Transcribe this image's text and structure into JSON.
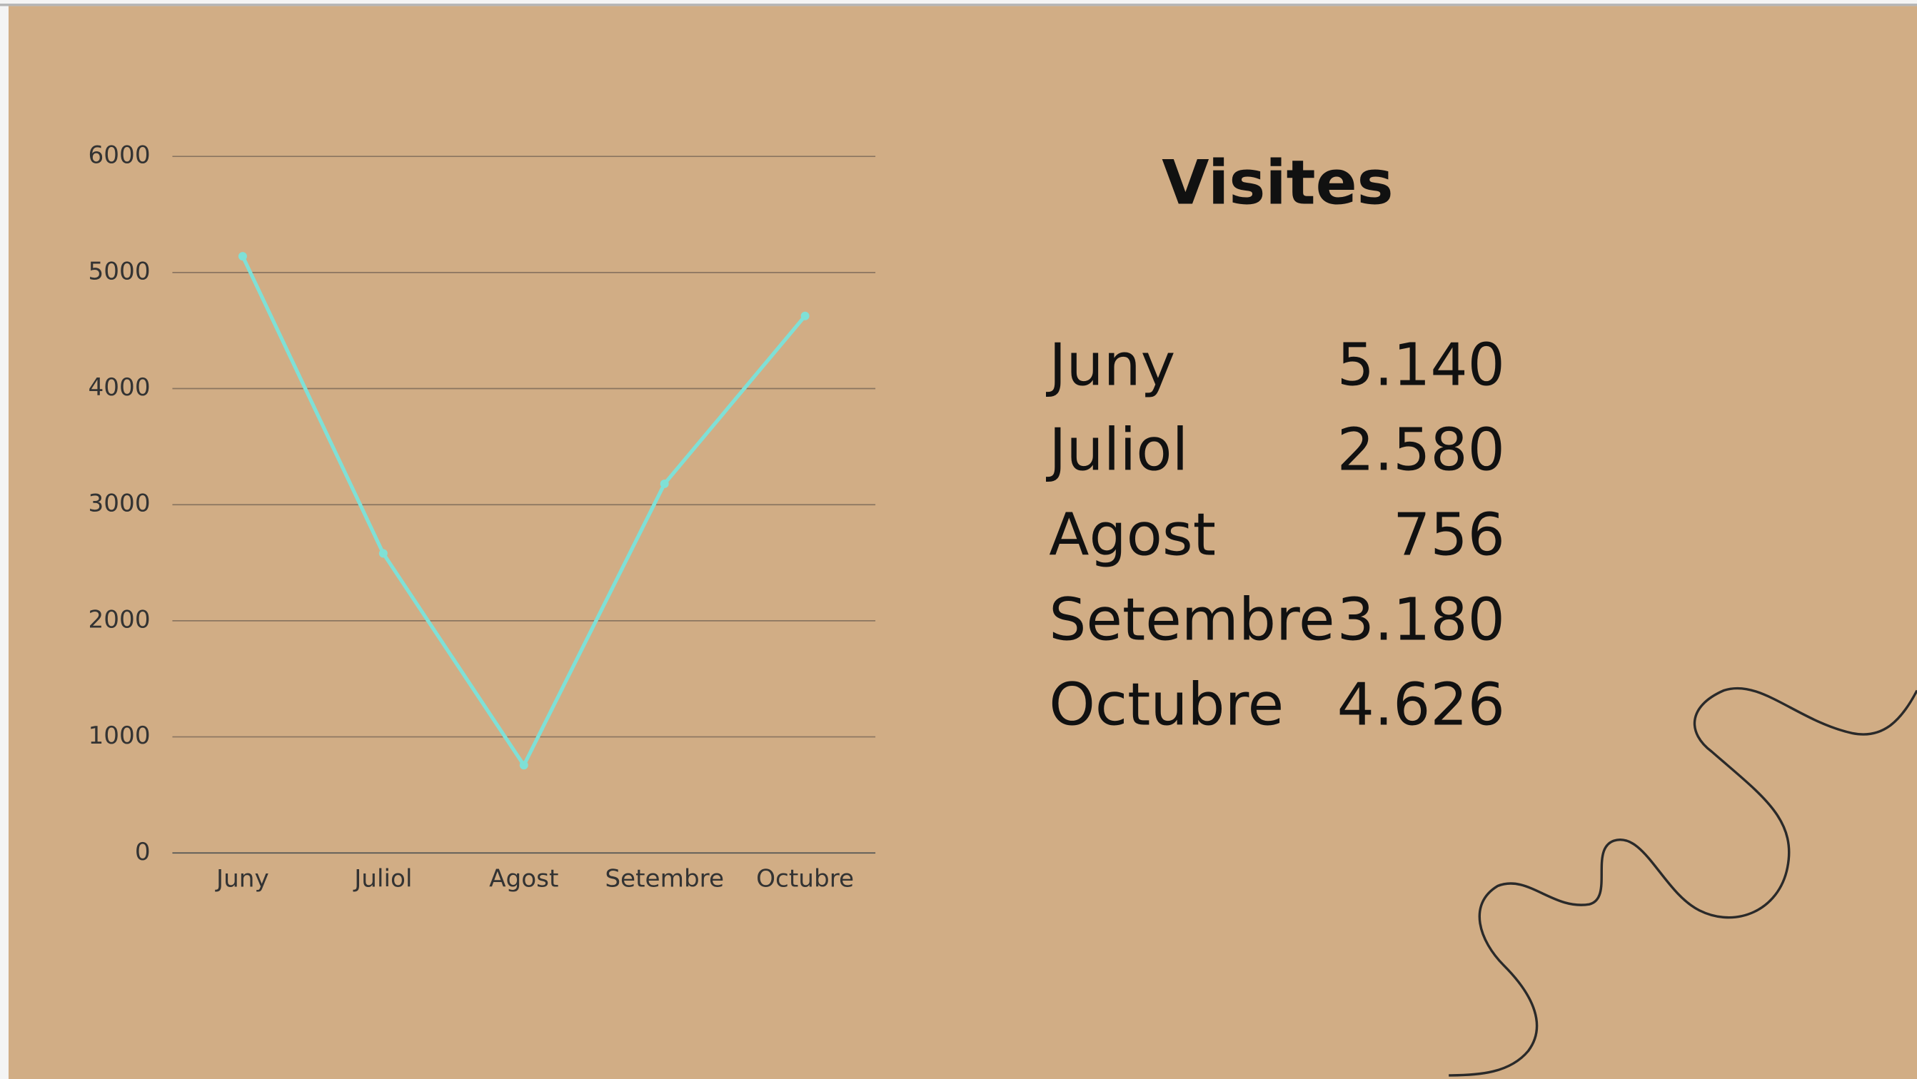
{
  "chart_data": {
    "type": "line",
    "categories": [
      "Juny",
      "Juliol",
      "Agost",
      "Setembre",
      "Octubre"
    ],
    "values": [
      5140,
      2580,
      756,
      3180,
      4626
    ],
    "color": "#7fe0d6",
    "ylim": [
      0,
      6000
    ],
    "yticks": [
      0,
      1000,
      2000,
      3000,
      4000,
      5000,
      6000
    ],
    "grid": true
  },
  "heading": "Visites",
  "table": {
    "rows": [
      [
        "Juny",
        "5.140"
      ],
      [
        "Juliol",
        "2.580"
      ],
      [
        "Agost",
        "756"
      ],
      [
        "Setembre",
        "3.180"
      ],
      [
        "Octubre",
        "4.626"
      ]
    ]
  }
}
